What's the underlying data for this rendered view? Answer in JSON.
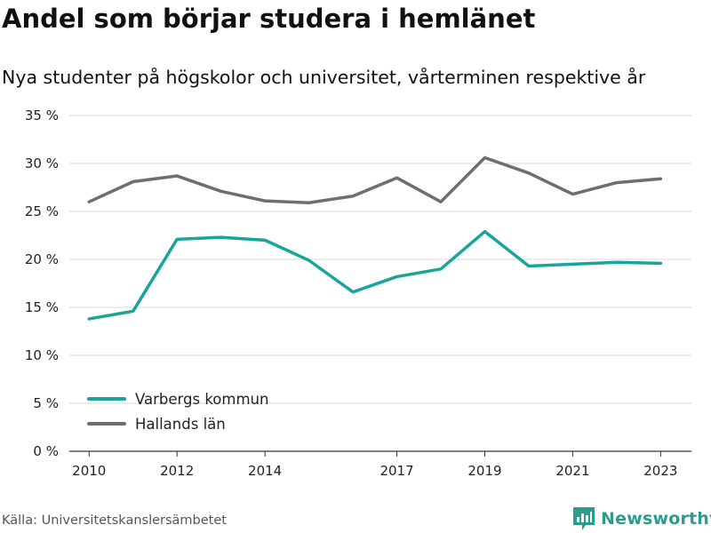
{
  "title": "Andel som börjar studera i hemlänet",
  "subtitle": "Nya studenter på högskolor och universitet, vårterminen respektive år",
  "source": "Källa: Universitetskanslersämbetet",
  "brand": {
    "name": "Newsworthy",
    "icon": "newsworthy-logo-icon",
    "color": "#2a9d8f"
  },
  "chart_data": {
    "type": "line",
    "title": "Andel som börjar studera i hemlänet",
    "subtitle": "Nya studenter på högskolor och universitet, vårterminen respektive år",
    "x": [
      2010,
      2011,
      2012,
      2013,
      2014,
      2015,
      2016,
      2017,
      2018,
      2019,
      2020,
      2021,
      2022,
      2023
    ],
    "x_ticks": [
      2010,
      2012,
      2014,
      2017,
      2019,
      2021,
      2023
    ],
    "x_tick_labels": [
      "2010",
      "2012",
      "2014",
      "2017",
      "2019",
      "2021",
      "2023"
    ],
    "xlim": [
      2009.55,
      2023.7
    ],
    "ylim": [
      0,
      35
    ],
    "y_ticks": [
      0,
      5,
      10,
      15,
      20,
      25,
      30,
      35
    ],
    "y_tick_labels": [
      "0 %",
      "5 %",
      "10 %",
      "15 %",
      "20 %",
      "25 %",
      "30 %",
      "35 %"
    ],
    "grid": "horizontal",
    "legend_position": "bottom-left",
    "series": [
      {
        "name": "Varbergs kommun",
        "color": "#1aa599",
        "values": [
          13.8,
          14.6,
          22.1,
          22.3,
          22.0,
          19.9,
          16.6,
          18.2,
          19.0,
          22.9,
          19.3,
          19.5,
          19.7,
          19.6
        ]
      },
      {
        "name": "Hallands län",
        "color": "#6e6d75",
        "values": [
          26.0,
          28.1,
          28.7,
          27.1,
          26.1,
          25.9,
          26.6,
          28.5,
          26.0,
          30.6,
          29.0,
          26.8,
          28.0,
          28.4
        ]
      }
    ]
  }
}
